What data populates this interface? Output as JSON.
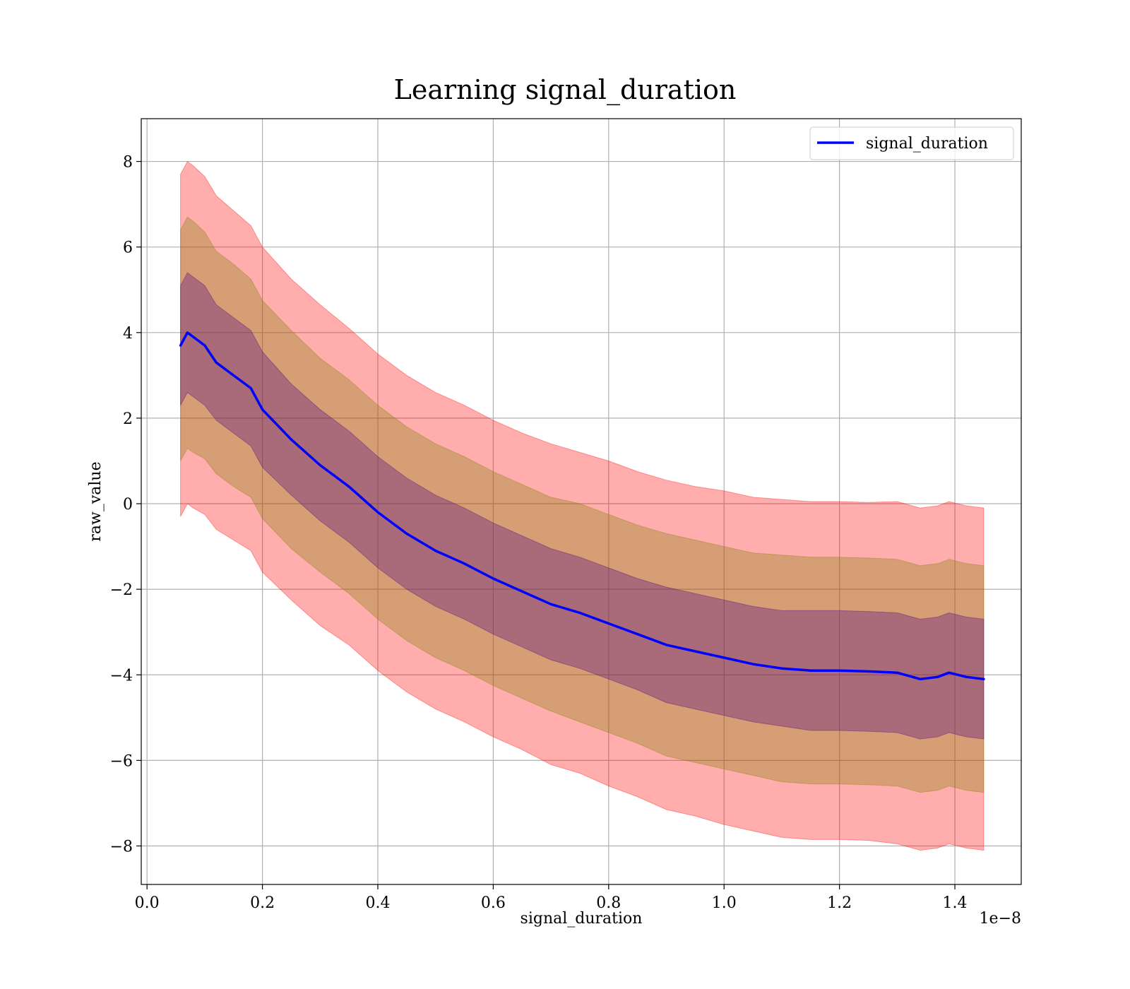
{
  "chart_data": {
    "type": "line",
    "title": "Learning signal_duration",
    "xlabel": "signal_duration",
    "ylabel": "raw_value",
    "x_offset_label": "1e−8",
    "xlim": [
      -0.01,
      1.515
    ],
    "ylim": [
      -8.9,
      9.0
    ],
    "x_ticks": [
      0.0,
      0.2,
      0.4,
      0.6,
      0.8,
      1.0,
      1.2,
      1.4
    ],
    "x_tick_labels": [
      "0.0",
      "0.2",
      "0.4",
      "0.6",
      "0.8",
      "1.0",
      "1.2",
      "1.4"
    ],
    "y_ticks": [
      -8,
      -6,
      -4,
      -2,
      0,
      2,
      4,
      6,
      8
    ],
    "y_tick_labels": [
      "−8",
      "−6",
      "−4",
      "−2",
      "0",
      "2",
      "4",
      "6",
      "8"
    ],
    "grid": true,
    "legend": {
      "position": "top-right",
      "entries": [
        "signal_duration"
      ]
    },
    "series": [
      {
        "name": "signal_duration",
        "color": "#0000ff",
        "x": [
          0.058,
          0.07,
          0.08,
          0.1,
          0.12,
          0.15,
          0.18,
          0.2,
          0.25,
          0.3,
          0.35,
          0.4,
          0.45,
          0.5,
          0.55,
          0.6,
          0.65,
          0.7,
          0.75,
          0.8,
          0.85,
          0.9,
          0.95,
          1.0,
          1.05,
          1.1,
          1.15,
          1.2,
          1.25,
          1.3,
          1.34,
          1.37,
          1.39,
          1.42,
          1.45
        ],
        "y": [
          3.7,
          4.0,
          3.9,
          3.7,
          3.3,
          3.0,
          2.7,
          2.2,
          1.5,
          0.9,
          0.4,
          -0.2,
          -0.7,
          -1.1,
          -1.4,
          -1.75,
          -2.05,
          -2.35,
          -2.55,
          -2.8,
          -3.05,
          -3.3,
          -3.45,
          -3.6,
          -3.75,
          -3.85,
          -3.9,
          -3.9,
          -3.92,
          -3.95,
          -4.1,
          -4.05,
          -3.95,
          -4.05,
          -4.1
        ]
      }
    ],
    "bands": [
      {
        "name": "outer",
        "color": "#ff0000",
        "opacity": 0.32,
        "half_width": [
          4.0,
          4.0,
          4.0,
          3.95,
          3.9,
          3.85,
          3.8,
          3.8,
          3.75,
          3.75,
          3.7,
          3.7,
          3.7,
          3.7,
          3.7,
          3.7,
          3.7,
          3.75,
          3.75,
          3.8,
          3.8,
          3.85,
          3.85,
          3.9,
          3.9,
          3.95,
          3.95,
          3.95,
          3.95,
          4.0,
          4.0,
          4.0,
          4.0,
          4.0,
          4.0
        ]
      },
      {
        "name": "middle",
        "color": "#808000",
        "opacity": 0.32,
        "half_width": [
          2.7,
          2.7,
          2.7,
          2.65,
          2.6,
          2.6,
          2.55,
          2.55,
          2.55,
          2.5,
          2.5,
          2.5,
          2.5,
          2.5,
          2.5,
          2.5,
          2.5,
          2.5,
          2.55,
          2.55,
          2.55,
          2.6,
          2.6,
          2.6,
          2.6,
          2.65,
          2.65,
          2.65,
          2.65,
          2.65,
          2.65,
          2.65,
          2.65,
          2.65,
          2.65
        ]
      },
      {
        "name": "inner",
        "color": "#4b0082",
        "opacity": 0.32,
        "half_width": [
          1.4,
          1.4,
          1.4,
          1.4,
          1.35,
          1.35,
          1.35,
          1.35,
          1.3,
          1.3,
          1.3,
          1.3,
          1.3,
          1.3,
          1.3,
          1.3,
          1.3,
          1.3,
          1.3,
          1.3,
          1.3,
          1.35,
          1.35,
          1.35,
          1.35,
          1.35,
          1.4,
          1.4,
          1.4,
          1.4,
          1.4,
          1.4,
          1.4,
          1.4,
          1.4
        ]
      }
    ]
  }
}
